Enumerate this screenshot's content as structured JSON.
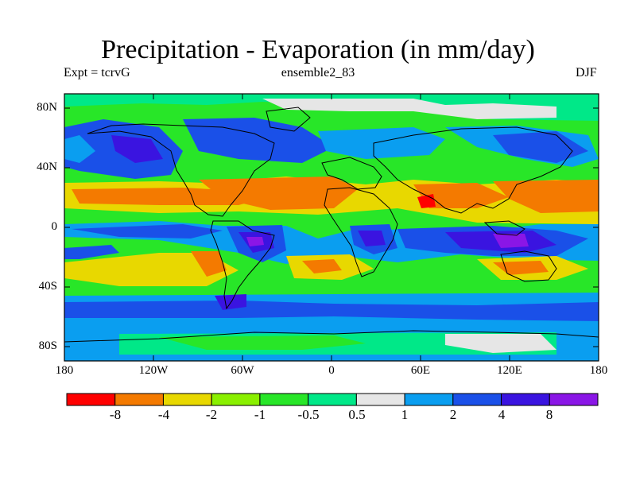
{
  "header": {
    "title": "Precipitation - Evaporation (in mm/day)",
    "expt_label": "Expt = tcrvG",
    "ensemble_label": "ensemble2_83",
    "season_label": "DJF"
  },
  "map": {
    "y_tick_labels": [
      "80N",
      "40N",
      "0",
      "40S",
      "80S"
    ],
    "x_tick_labels": [
      "180",
      "120W",
      "60W",
      "0",
      "60E",
      "120E",
      "180"
    ]
  },
  "colorbar": {
    "tick_labels": [
      "-8",
      "-4",
      "-2",
      "-1",
      "-0.5",
      "0.5",
      "1",
      "2",
      "4",
      "8"
    ],
    "colors": [
      "#ff0000",
      "#f47a00",
      "#e8d800",
      "#8af000",
      "#28e628",
      "#00e888",
      "#e6e6e6",
      "#0a9ef0",
      "#1a50e8",
      "#3a14e0",
      "#8a16e6"
    ]
  }
}
